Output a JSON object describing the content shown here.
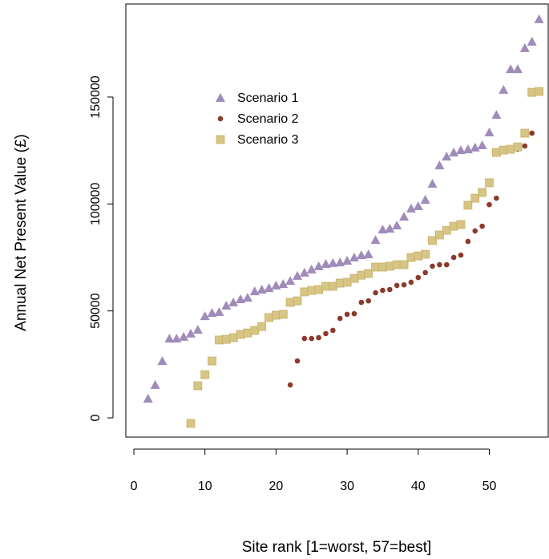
{
  "chart_data": {
    "type": "scatter",
    "x_label": "Site rank [1=worst, 57=best]",
    "y_label": "Annual Net Present Value (£)",
    "xlim": [
      -1.13,
      58.4
    ],
    "ylim": [
      -9000,
      193500
    ],
    "xticks": [
      0,
      10,
      20,
      30,
      40,
      50
    ],
    "yticks": [
      0,
      50000,
      100000,
      150000
    ],
    "legend": "upper left",
    "series": [
      {
        "name": "Scenario 1",
        "color": "#a08cba",
        "marker": "triangle",
        "x": [
          2,
          3,
          4,
          5,
          6,
          7,
          8,
          9,
          10,
          11,
          12,
          13,
          14,
          15,
          16,
          17,
          18,
          19,
          20,
          21,
          22,
          23,
          24,
          25,
          26,
          27,
          28,
          29,
          30,
          31,
          32,
          33,
          34,
          35,
          36,
          37,
          38,
          39,
          40,
          41,
          42,
          43,
          44,
          45,
          46,
          47,
          48,
          49,
          50,
          51,
          52,
          53,
          54,
          55,
          56,
          57
        ],
        "values": [
          9000,
          15400,
          26600,
          37100,
          37100,
          37900,
          39400,
          41200,
          47600,
          49100,
          49500,
          52500,
          54000,
          55500,
          56200,
          59200,
          60000,
          60700,
          61900,
          62600,
          64100,
          66400,
          67900,
          69400,
          70900,
          72000,
          72400,
          72700,
          73500,
          75000,
          76100,
          76500,
          83200,
          88100,
          88500,
          90000,
          94100,
          97900,
          99000,
          102000,
          109500,
          118100,
          122200,
          124100,
          125200,
          125600,
          126400,
          127500,
          133500,
          141700,
          153400,
          163100,
          163100,
          172900,
          175900,
          186400
        ]
      },
      {
        "name": "Scenario 2",
        "color": "#8b3a2b",
        "marker": "circle",
        "x": [
          22,
          23,
          24,
          25,
          26,
          27,
          28,
          29,
          30,
          31,
          32,
          33,
          34,
          35,
          36,
          37,
          38,
          39,
          40,
          41,
          42,
          43,
          44,
          45,
          46,
          47,
          48,
          49,
          50,
          51,
          52,
          53,
          54,
          55,
          56,
          57
        ],
        "values": [
          15400,
          26600,
          37100,
          37100,
          37500,
          39400,
          40900,
          46500,
          48400,
          48700,
          54000,
          54700,
          58500,
          59600,
          60000,
          61900,
          62200,
          63400,
          65600,
          67900,
          70900,
          71600,
          71600,
          75000,
          76100,
          82500,
          87400,
          89600,
          99700,
          102700,
          124500,
          125600,
          125600,
          127100,
          133100,
          153000
        ]
      },
      {
        "name": "Scenario 3",
        "color": "#d6c584",
        "marker": "square",
        "x": [
          8,
          9,
          10,
          11,
          12,
          13,
          14,
          15,
          16,
          17,
          18,
          19,
          20,
          21,
          22,
          23,
          24,
          25,
          26,
          27,
          28,
          29,
          30,
          31,
          32,
          33,
          34,
          35,
          36,
          37,
          38,
          39,
          40,
          41,
          42,
          43,
          44,
          45,
          46,
          47,
          48,
          49,
          50,
          51,
          52,
          53,
          54,
          55,
          56,
          57
        ],
        "values": [
          -2600,
          15000,
          20200,
          26600,
          36400,
          36700,
          37500,
          39000,
          39700,
          40900,
          42700,
          46900,
          48000,
          48400,
          54000,
          54700,
          58900,
          59600,
          60000,
          61500,
          61500,
          63000,
          63400,
          65200,
          66700,
          67500,
          70500,
          70500,
          70900,
          71600,
          71600,
          75000,
          75700,
          76500,
          82900,
          85500,
          87700,
          89600,
          90400,
          99400,
          102700,
          105400,
          109900,
          124100,
          125200,
          125600,
          126700,
          133100,
          152200,
          152600
        ]
      }
    ]
  }
}
